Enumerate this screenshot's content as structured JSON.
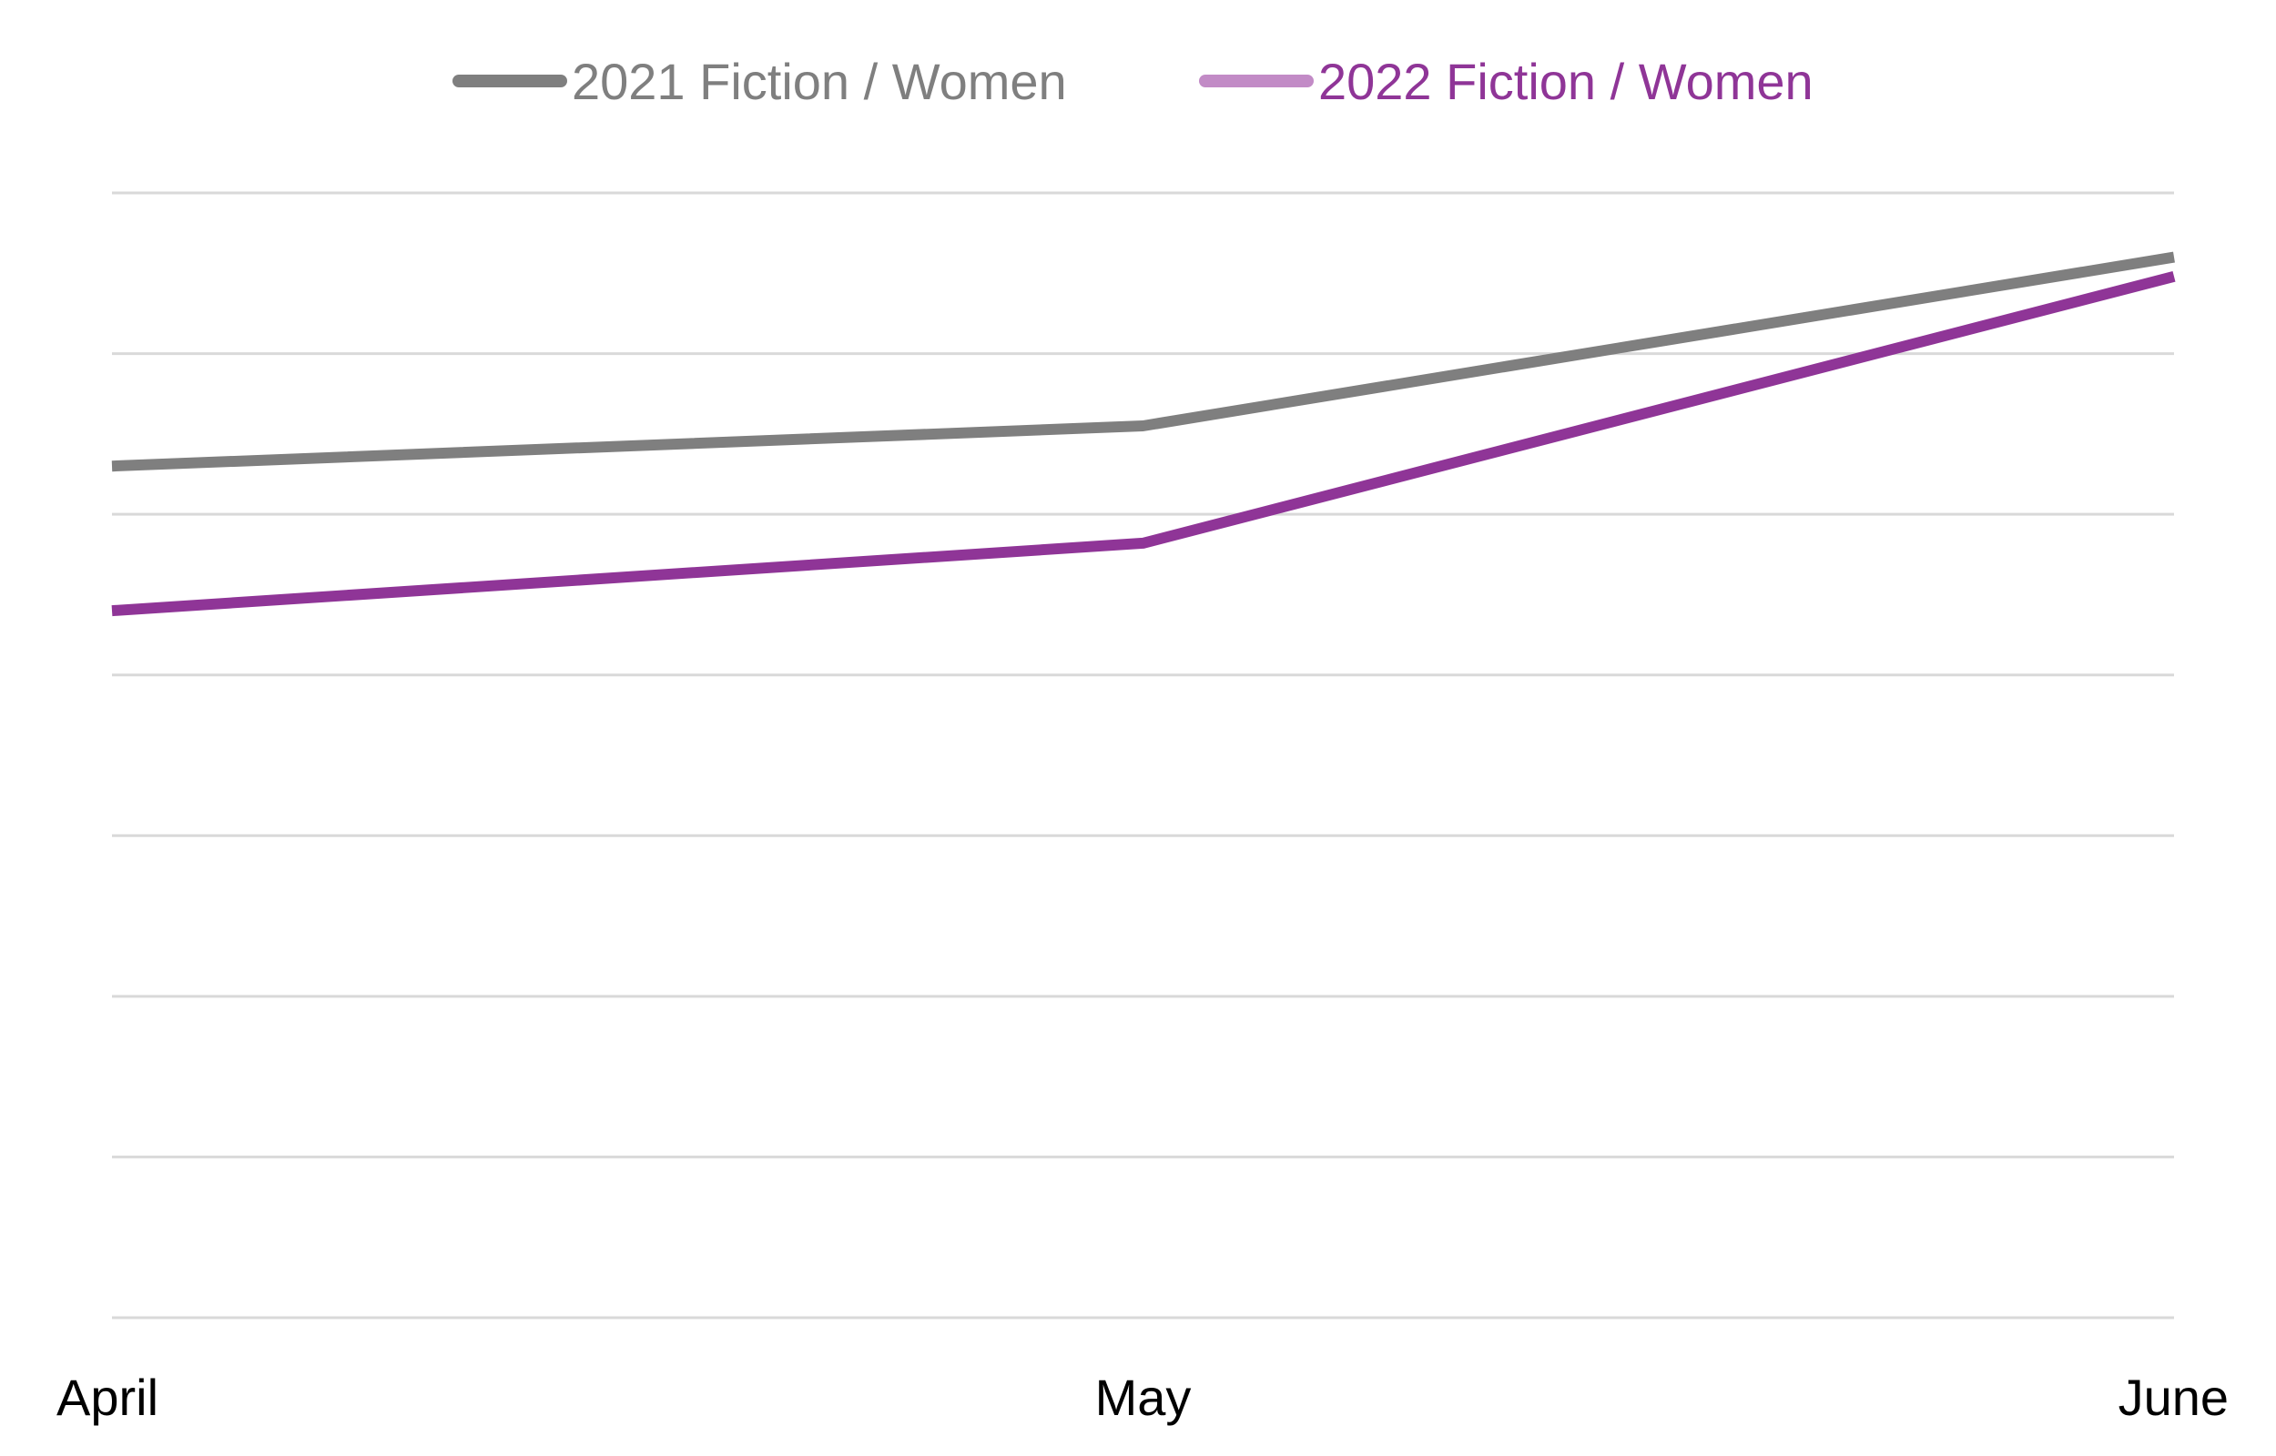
{
  "chart_data": {
    "type": "line",
    "title": "",
    "xlabel": "",
    "ylabel": "",
    "categories": [
      "April",
      "May",
      "June"
    ],
    "ylim": [
      0,
      7
    ],
    "grid": true,
    "y_tick_labels_shown": false,
    "legend": "top",
    "series": [
      {
        "name": "2021 Fiction / Women",
        "values": [
          5.3,
          5.55,
          6.6
        ],
        "color": "#7f7f7f",
        "legend_swatch_color": "#7f7f7f",
        "label_color": "#7f7f7f"
      },
      {
        "name": "2022 Fiction / Women",
        "values": [
          4.4,
          4.82,
          6.48
        ],
        "color": "#8f3597",
        "legend_swatch_color": "#c28bc6",
        "label_color": "#8f3597"
      }
    ],
    "gridline_color": "#d9d9d9"
  }
}
